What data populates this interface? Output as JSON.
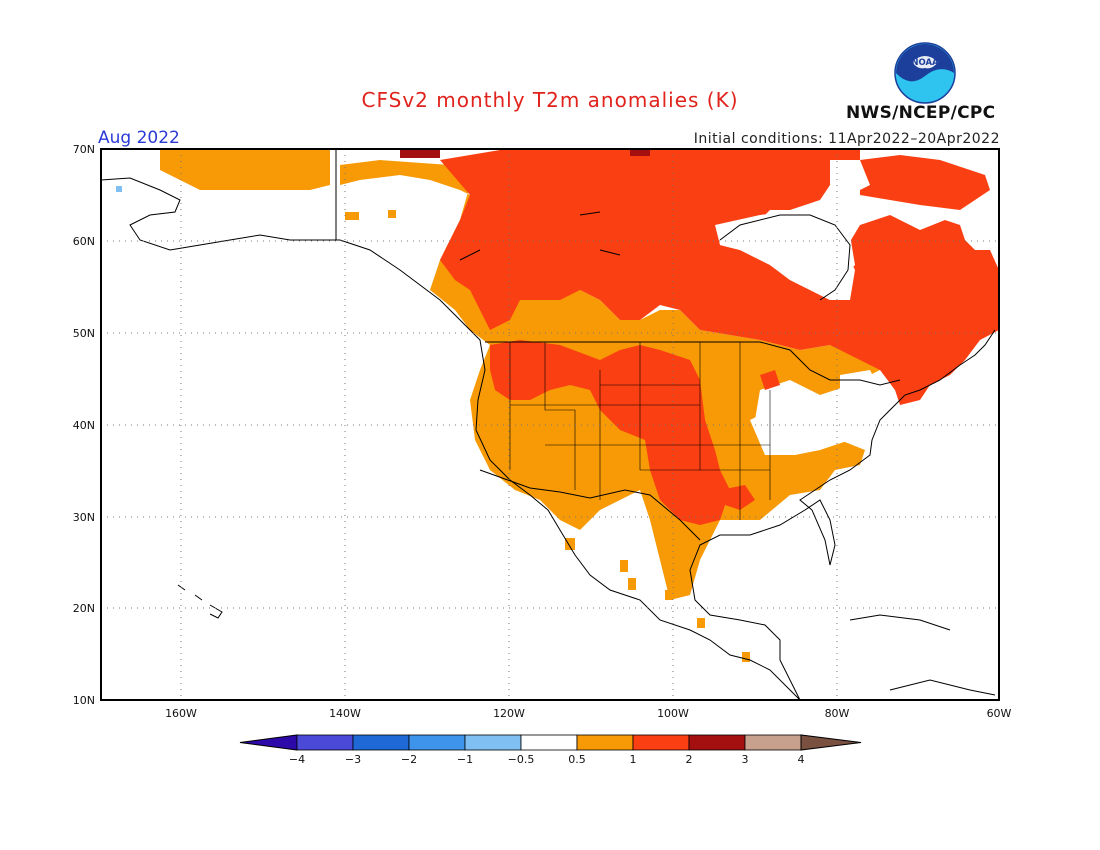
{
  "title": "CFSv2 monthly T2m anomalies (K)",
  "month": "Aug 2022",
  "initial_conditions": "Initial conditions: 11Apr2022–20Apr2022",
  "agency": "NWS/NCEP/CPC",
  "logo_text": "NOAA",
  "map": {
    "lat_ticks": [
      "70N",
      "60N",
      "50N",
      "40N",
      "30N",
      "20N",
      "10N"
    ],
    "lon_ticks": [
      "160W",
      "140W",
      "120W",
      "100W",
      "80W",
      "60W"
    ],
    "grid": true
  },
  "colorbar": {
    "labels": [
      "−4",
      "−3",
      "−2",
      "−1",
      "−0.5",
      "0.5",
      "1",
      "2",
      "3",
      "4"
    ],
    "colors": [
      "#2c09a8",
      "#4b4ad8",
      "#1f69d6",
      "#3e93ea",
      "#80bff2",
      "#ffffff",
      "#f79a06",
      "#fa3f12",
      "#a40f0f",
      "#c8a08e",
      "#7a5040"
    ]
  },
  "anomaly_colors": {
    "warm_0_5_to_1": "#f79a06",
    "warm_1_to_2": "#fa3f12",
    "warm_2_to_3": "#a40f0f",
    "neutral": "#ffffff",
    "cool": "#80bff2"
  }
}
